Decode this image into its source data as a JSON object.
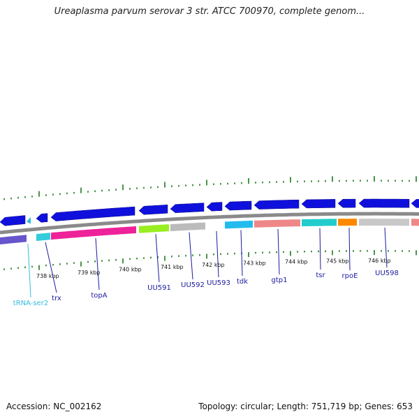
{
  "title": "Ureaplasma parvum serovar 3 str. ATCC 700970, complete genom...",
  "footer": {
    "accession": "Accession: NC_002162",
    "stats": "Topology: circular; Length: 751,719 bp; Genes: 653"
  },
  "kbp_ticks": [
    "738 kbp",
    "739 kbp",
    "740 kbp",
    "741 kbp",
    "742 kbp",
    "743 kbp",
    "744 kbp",
    "745 kbp",
    "746 kbp"
  ],
  "gene_labels": [
    {
      "name": "tRNA-ser2",
      "color": "#33bbdd"
    },
    {
      "name": "trx",
      "color": "#1a1aa0"
    },
    {
      "name": "topA",
      "color": "#1a1aa0"
    },
    {
      "name": "UU591",
      "color": "#1a1aa0"
    },
    {
      "name": "UU592",
      "color": "#1a1aa0"
    },
    {
      "name": "UU593",
      "color": "#1a1aa0"
    },
    {
      "name": "tdk",
      "color": "#1a1aa0"
    },
    {
      "name": "gtp1",
      "color": "#1a1aa0"
    },
    {
      "name": "tsr",
      "color": "#1a1aa0"
    },
    {
      "name": "rpoE",
      "color": "#1a1aa0"
    },
    {
      "name": "UU598",
      "color": "#1a1aa0"
    }
  ],
  "colors": {
    "gene_arrow": "#1010dd",
    "tick_mark": "#1a7a1a",
    "backbone": "#8a8a8a",
    "trna": "#33bbdd"
  },
  "cog_colors": [
    "#6655cc",
    "#33ccdd",
    "#ee2299",
    "#99ee22",
    "#bbbbbb",
    "#22bbee",
    "#ee8888",
    "#22cccc",
    "#ff8800",
    "#c8c8c8",
    "#ee8888"
  ]
}
